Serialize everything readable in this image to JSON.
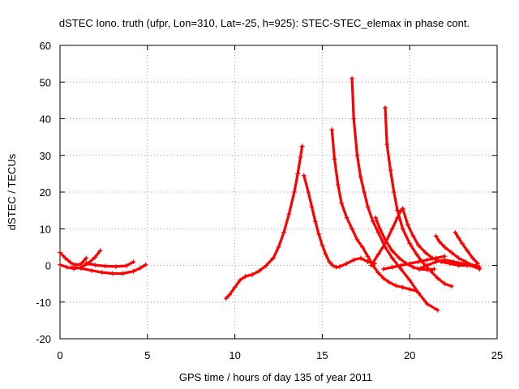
{
  "chart_data": {
    "type": "scatter",
    "title": "dSTEC Iono. truth (ufpr, Lon=310, Lat=-25, h=925): STEC-STEC_elemax in phase cont.",
    "xlabel": "GPS time / hours of day 135 of year 2011",
    "ylabel": "dSTEC  / TECUs",
    "xlim": [
      0,
      25
    ],
    "ylim": [
      -20,
      60
    ],
    "xticks": [
      0,
      5,
      10,
      15,
      20,
      25
    ],
    "yticks": [
      -20,
      -10,
      0,
      10,
      20,
      30,
      40,
      50,
      60
    ],
    "grid": true,
    "marker": "+",
    "color": "#ff0000",
    "series": [
      {
        "x": [
          0.0,
          0.3,
          0.6,
          0.9,
          1.2,
          1.5
        ],
        "y": [
          3.5,
          2.0,
          0.8,
          0.1,
          0.4,
          2.0
        ]
      },
      {
        "x": [
          0.0,
          0.4,
          0.8,
          1.2,
          1.6,
          2.0,
          2.3
        ],
        "y": [
          0.2,
          -0.5,
          -0.9,
          -0.5,
          0.5,
          2.2,
          4.0
        ]
      },
      {
        "x": [
          0.7,
          1.2,
          1.8,
          2.4,
          3.0,
          3.6,
          4.2,
          4.6,
          4.9
        ],
        "y": [
          -0.5,
          -0.8,
          -1.4,
          -1.9,
          -2.2,
          -2.2,
          -1.6,
          -0.7,
          0.2
        ]
      },
      {
        "x": [
          1.5,
          2.0,
          2.6,
          3.2,
          3.8,
          4.2
        ],
        "y": [
          0.6,
          0.1,
          -0.2,
          -0.3,
          -0.1,
          1.0
        ]
      },
      {
        "x": [
          9.5,
          9.7,
          10.0,
          10.3,
          10.6,
          11.0,
          11.4,
          11.8,
          12.2,
          12.5,
          12.8,
          13.1,
          13.4,
          13.6,
          13.75,
          13.85
        ],
        "y": [
          -9.0,
          -8.0,
          -6.0,
          -4.0,
          -3.0,
          -2.5,
          -1.5,
          0.0,
          2.0,
          5.0,
          9.0,
          14.0,
          20.0,
          25.0,
          29.5,
          32.5
        ]
      },
      {
        "x": [
          13.95,
          14.2,
          14.4,
          14.6,
          14.8,
          15.0,
          15.2,
          15.4,
          15.6,
          15.8,
          16.0,
          16.4,
          16.8,
          17.2,
          17.6,
          18.0
        ],
        "y": [
          24.5,
          20.0,
          16.0,
          12.0,
          8.5,
          5.5,
          3.0,
          1.0,
          0.0,
          -0.5,
          -0.3,
          0.5,
          1.5,
          2.0,
          1.0,
          0.5
        ]
      },
      {
        "x": [
          15.55,
          15.7,
          15.9,
          16.1,
          16.4,
          16.7,
          17.0,
          17.3,
          17.6,
          17.9,
          18.2,
          18.5,
          18.8,
          19.2,
          19.6,
          20.0,
          20.4
        ],
        "y": [
          37.0,
          29.0,
          22.0,
          17.0,
          13.0,
          10.0,
          7.0,
          5.0,
          2.5,
          0.0,
          -2.0,
          -3.5,
          -4.5,
          -5.5,
          -6.0,
          -6.5,
          -7.0
        ]
      },
      {
        "x": [
          16.7,
          16.8,
          17.0,
          17.2,
          17.4,
          17.6,
          17.9,
          18.2,
          18.6,
          19.0,
          19.5,
          20.0,
          20.5,
          21.0,
          21.6
        ],
        "y": [
          51.0,
          40.0,
          30.0,
          24.0,
          20.0,
          16.0,
          12.0,
          9.0,
          5.0,
          2.0,
          -1.0,
          -4.0,
          -7.5,
          -10.5,
          -12.2
        ]
      },
      {
        "x": [
          18.6,
          18.7,
          18.9,
          19.1,
          19.3,
          19.6,
          20.0,
          20.4,
          20.8,
          21.2,
          21.6,
          22.0,
          22.4
        ],
        "y": [
          43.0,
          33.0,
          26.0,
          20.0,
          15.0,
          10.0,
          6.0,
          3.0,
          0.5,
          -1.5,
          -3.5,
          -5.0,
          -5.7
        ]
      },
      {
        "x": [
          18.05,
          18.3,
          18.6,
          19.0,
          19.4,
          19.8,
          20.2,
          20.6,
          21.0,
          21.4
        ],
        "y": [
          13.0,
          10.0,
          7.0,
          4.0,
          2.0,
          0.5,
          -0.5,
          -1.0,
          -1.2,
          -1.0
        ]
      },
      {
        "x": [
          17.8,
          18.2,
          18.6,
          19.0,
          19.3,
          19.5,
          19.6
        ],
        "y": [
          0.0,
          3.0,
          6.0,
          10.0,
          13.0,
          15.0,
          15.5
        ]
      },
      {
        "x": [
          19.6,
          19.9,
          20.2,
          20.5,
          20.9,
          21.3,
          21.8,
          22.3,
          22.8,
          23.3,
          23.8
        ],
        "y": [
          15.5,
          11.0,
          8.0,
          5.5,
          3.5,
          2.0,
          1.0,
          0.5,
          0.0,
          0.0,
          0.0
        ]
      },
      {
        "x": [
          21.5,
          21.7,
          22.0,
          22.4,
          22.8,
          23.2,
          23.6,
          24.0
        ],
        "y": [
          8.0,
          6.5,
          5.0,
          3.5,
          2.0,
          1.0,
          0.0,
          -0.5
        ]
      },
      {
        "x": [
          22.6,
          22.8,
          23.0,
          23.3,
          23.6,
          23.9
        ],
        "y": [
          9.0,
          7.5,
          6.0,
          4.0,
          2.0,
          0.5
        ]
      },
      {
        "x": [
          20.5,
          21.0,
          21.5,
          22.0,
          22.5,
          23.0,
          23.5,
          24.0
        ],
        "y": [
          -1.0,
          0.0,
          1.0,
          1.5,
          1.0,
          0.5,
          0.0,
          -1.0
        ]
      },
      {
        "x": [
          18.5,
          19.0,
          19.5,
          20.0,
          20.5,
          21.0,
          21.5,
          22.0
        ],
        "y": [
          -1.0,
          -0.5,
          0.0,
          0.5,
          1.0,
          1.5,
          2.0,
          2.5
        ]
      }
    ]
  }
}
